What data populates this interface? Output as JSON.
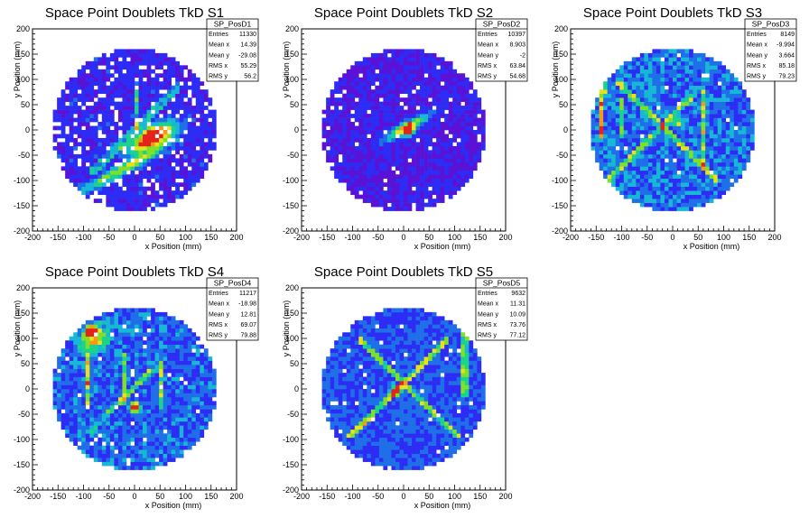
{
  "colors": {
    "palette": [
      "#3a0a8c",
      "#5a12d6",
      "#2d2cf5",
      "#1f6fe8",
      "#17b7d6",
      "#1bd38a",
      "#7fe02a",
      "#e8e21d",
      "#f59a18",
      "#e4241b"
    ],
    "frame": "#000000"
  },
  "chart_data": [
    {
      "type": "heatmap",
      "title": "Space Point Doublets TkD S1",
      "xlabel": "x Position (mm)",
      "ylabel": "y Position (mm)",
      "xlim": [
        -200,
        200
      ],
      "ylim": [
        -200,
        200
      ],
      "xticks": [
        "-200",
        "-150",
        "-100",
        "-50",
        "0",
        "50",
        "100",
        "150",
        "200"
      ],
      "yticks": [
        "-200",
        "-150",
        "-100",
        "-50",
        "0",
        "50",
        "100",
        "150",
        "200"
      ],
      "stats": {
        "name": "SP_PosD1",
        "rows": [
          {
            "label": "Entries",
            "value": "11330"
          },
          {
            "label": "Mean x",
            "value": "14.39"
          },
          {
            "label": "Mean y",
            "value": "-29.08"
          },
          {
            "label": "RMS x",
            "value": "55.29"
          },
          {
            "label": "RMS y",
            "value": "56.2"
          }
        ]
      },
      "features": {
        "background": 1.6,
        "noise": 0.18,
        "holes": 0.14,
        "bands": [
          [
            -20,
            -75,
            95,
            10,
            5.0
          ],
          [
            35,
            -15,
            45,
            18,
            9.0
          ]
        ],
        "lines": [
          [
            5,
            40,
            20,
            3.0,
            0
          ],
          [
            40,
            0,
            -40,
            2.5,
            1
          ],
          [
            0,
            0,
            60,
            2.5,
            1
          ]
        ],
        "hotspots": [
          [
            35,
            -10,
            12,
            8.5
          ]
        ]
      }
    },
    {
      "type": "heatmap",
      "title": "Space Point Doublets TkD S2",
      "xlabel": "x Position (mm)",
      "ylabel": "y Position (mm)",
      "xlim": [
        -200,
        200
      ],
      "ylim": [
        -200,
        200
      ],
      "xticks": [
        "-200",
        "-150",
        "-100",
        "-50",
        "0",
        "50",
        "100",
        "150",
        "200"
      ],
      "yticks": [
        "-200",
        "-150",
        "-100",
        "-50",
        "0",
        "50",
        "100",
        "150",
        "200"
      ],
      "stats": {
        "name": "SP_PosD2",
        "rows": [
          {
            "label": "Entries",
            "value": "10397"
          },
          {
            "label": "Mean x",
            "value": "8.903"
          },
          {
            "label": "Mean y",
            "value": "-2"
          },
          {
            "label": "RMS x",
            "value": "63.84"
          },
          {
            "label": "RMS y",
            "value": "54.68"
          }
        ]
      },
      "features": {
        "background": 1.5,
        "noise": 0.12,
        "holes": 0.06,
        "bands": [
          [
            5,
            5,
            45,
            10,
            6.0
          ]
        ],
        "lines": [],
        "hotspots": [
          [
            10,
            0,
            10,
            9.0
          ]
        ]
      }
    },
    {
      "type": "heatmap",
      "title": "Space Point Doublets TkD S3",
      "xlabel": "x Position (mm)",
      "ylabel": "y Position (mm)",
      "xlim": [
        -200,
        200
      ],
      "ylim": [
        -200,
        200
      ],
      "xticks": [
        "-200",
        "-150",
        "-100",
        "-50",
        "0",
        "50",
        "100",
        "150",
        "200"
      ],
      "yticks": [
        "-200",
        "-150",
        "-100",
        "-50",
        "0",
        "50",
        "100",
        "150",
        "200"
      ],
      "stats": {
        "name": "SP_PosD3",
        "rows": [
          {
            "label": "Entries",
            "value": "8149"
          },
          {
            "label": "Mean x",
            "value": "-9.994"
          },
          {
            "label": "Mean y",
            "value": "3.664"
          },
          {
            "label": "RMS x",
            "value": "85.18"
          },
          {
            "label": "RMS y",
            "value": "79.23"
          }
        ]
      },
      "features": {
        "background": 2.3,
        "noise": 0.3,
        "holes": 0.02,
        "bands": [],
        "lines": [
          [
            -140,
            25,
            20,
            5.0,
            0
          ],
          [
            -100,
            25,
            20,
            3.0,
            0
          ],
          [
            -45,
            -20,
            60,
            3.0,
            1
          ],
          [
            -10,
            0,
            70,
            3.0,
            2
          ],
          [
            60,
            0,
            40,
            3.5,
            0
          ]
        ],
        "hotspots": [
          [
            -140,
            80,
            10,
            6.5
          ],
          [
            10,
            15,
            8,
            5.0
          ]
        ]
      }
    },
    {
      "type": "heatmap",
      "title": "Space Point Doublets TkD S4",
      "xlabel": "x Position (mm)",
      "ylabel": "y Position (mm)",
      "xlim": [
        -200,
        200
      ],
      "ylim": [
        -200,
        200
      ],
      "xticks": [
        "-200",
        "-150",
        "-100",
        "-50",
        "0",
        "50",
        "100",
        "150",
        "200"
      ],
      "yticks": [
        "-200",
        "-150",
        "-100",
        "-50",
        "0",
        "50",
        "100",
        "150",
        "200"
      ],
      "stats": {
        "name": "SP_PosD4",
        "rows": [
          {
            "label": "Entries",
            "value": "11217"
          },
          {
            "label": "Mean x",
            "value": "-18.98"
          },
          {
            "label": "Mean y",
            "value": "12.81"
          },
          {
            "label": "RMS x",
            "value": "69.07"
          },
          {
            "label": "RMS y",
            "value": "79.88"
          }
        ]
      },
      "features": {
        "background": 2.1,
        "noise": 0.28,
        "holes": 0.03,
        "bands": [
          [
            -80,
            100,
            30,
            20,
            5.0
          ]
        ],
        "lines": [
          [
            -90,
            20,
            25,
            4.5,
            0
          ],
          [
            -20,
            20,
            25,
            3.0,
            0
          ],
          [
            50,
            10,
            25,
            3.5,
            0
          ],
          [
            -30,
            -25,
            45,
            2.5,
            1
          ]
        ],
        "hotspots": [
          [
            -85,
            115,
            10,
            8.5
          ],
          [
            0,
            -35,
            9,
            8.5
          ]
        ]
      }
    },
    {
      "type": "heatmap",
      "title": "Space Point Doublets TkD S5",
      "xlabel": "x Position (mm)",
      "ylabel": "y Position (mm)",
      "xlim": [
        -200,
        200
      ],
      "ylim": [
        -200,
        200
      ],
      "xticks": [
        "-200",
        "-150",
        "-100",
        "-50",
        "0",
        "50",
        "100",
        "150",
        "200"
      ],
      "yticks": [
        "-200",
        "-150",
        "-100",
        "-50",
        "0",
        "50",
        "100",
        "150",
        "200"
      ],
      "stats": {
        "name": "SP_PosD5",
        "rows": [
          {
            "label": "Entries",
            "value": "9632"
          },
          {
            "label": "Mean x",
            "value": "11.31"
          },
          {
            "label": "Mean y",
            "value": "10.09"
          },
          {
            "label": "RMS x",
            "value": "73.76"
          },
          {
            "label": "RMS y",
            "value": "77.12"
          }
        ]
      },
      "features": {
        "background": 2.0,
        "noise": 0.25,
        "holes": 0.03,
        "bands": [],
        "lines": [
          [
            -10,
            0,
            70,
            4.0,
            1
          ],
          [
            10,
            0,
            70,
            3.5,
            2
          ],
          [
            120,
            60,
            40,
            3.0,
            0
          ]
        ],
        "hotspots": [
          [
            -15,
            -5,
            9,
            9.0
          ]
        ]
      }
    }
  ]
}
